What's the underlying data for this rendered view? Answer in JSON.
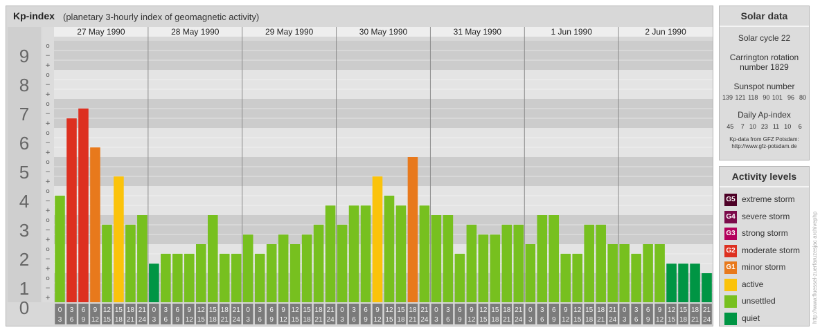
{
  "kp": {
    "title": "Kp-index",
    "subtitle": "(planetary 3-hourly index of geomagnetic activity)"
  },
  "chart_data": {
    "type": "bar",
    "ylim": [
      0,
      9
    ],
    "y_ticks": [
      "0",
      "1",
      "2",
      "3",
      "4",
      "5",
      "6",
      "7",
      "8",
      "9"
    ],
    "minor_tick_labels": [
      "+",
      "−",
      "o"
    ],
    "days": [
      "27 May 1990",
      "28 May 1990",
      "29 May 1990",
      "30 May 1990",
      "31 May 1990",
      "1 Jun 1990",
      "2 Jun 1990"
    ],
    "interval_start_labels": [
      "0",
      "3",
      "6",
      "9",
      "12",
      "15",
      "18",
      "21"
    ],
    "interval_end_labels": [
      "3",
      "6",
      "9",
      "12",
      "15",
      "18",
      "21",
      "24"
    ],
    "values": [
      3.67,
      6.33,
      6.67,
      5.33,
      2.67,
      4.33,
      2.67,
      3.0,
      1.33,
      1.67,
      1.67,
      1.67,
      2.0,
      3.0,
      1.67,
      1.67,
      2.33,
      1.67,
      2.0,
      2.33,
      2.0,
      2.33,
      2.67,
      3.33,
      2.67,
      3.33,
      3.33,
      4.33,
      3.67,
      3.33,
      5.0,
      3.33,
      3.0,
      3.0,
      1.67,
      2.67,
      2.33,
      2.33,
      2.67,
      2.67,
      2.0,
      3.0,
      3.0,
      1.67,
      1.67,
      2.67,
      2.67,
      2.0,
      2.0,
      1.67,
      2.0,
      2.0,
      1.33,
      1.33,
      1.33,
      1.0
    ]
  },
  "solar": {
    "title": "Solar data",
    "cycle": "Solar cycle 22",
    "carrington_line1": "Carrington rotation",
    "carrington_line2": "number 1829",
    "sunspot_title": "Sunspot number",
    "sunspot_values": "139 121 118  90 101  96  80",
    "ap_title": "Daily Ap-index",
    "ap_values": "45   7  10  23  11  10   6",
    "source_line1": "Kp-data from GFZ Potsdam:",
    "source_line2": "http://www.gfz-potsdam.de"
  },
  "activity": {
    "title": "Activity levels",
    "levels": [
      {
        "code": "G5",
        "label": "extreme storm",
        "color": "#4d0026"
      },
      {
        "code": "G4",
        "label": "severe storm",
        "color": "#7b0a4a"
      },
      {
        "code": "G3",
        "label": "strong storm",
        "color": "#b3005c"
      },
      {
        "code": "G2",
        "label": "moderate storm",
        "color": "#dd3020"
      },
      {
        "code": "G1",
        "label": "minor storm",
        "color": "#e8791c"
      },
      {
        "code": "",
        "label": "active",
        "color": "#fbc30b"
      },
      {
        "code": "",
        "label": "unsettled",
        "color": "#77c01f"
      },
      {
        "code": "",
        "label": "quiet",
        "color": "#009544"
      }
    ]
  },
  "watermark": "http://www.fluessel-zuerfaruzesjac archivephp"
}
